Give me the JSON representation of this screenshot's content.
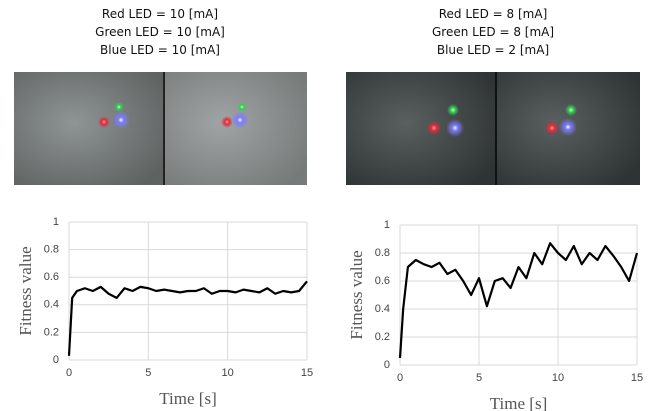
{
  "chart_data": [
    {
      "type": "line",
      "annotations": [
        "Red LED = 10 [mA]",
        "Green LED = 10 [mA]",
        "Blue LED = 10 [mA]"
      ],
      "xlabel": "Time [s]",
      "ylabel": "Fitness  value",
      "x": [
        0,
        0.2,
        0.5,
        1,
        1.5,
        2,
        2.5,
        3,
        3.5,
        4,
        4.5,
        5,
        5.5,
        6,
        6.5,
        7,
        7.5,
        8,
        8.5,
        9,
        9.5,
        10,
        10.5,
        11,
        11.5,
        12,
        12.5,
        13,
        13.5,
        14,
        14.5,
        15
      ],
      "values": [
        0.03,
        0.45,
        0.5,
        0.52,
        0.5,
        0.53,
        0.48,
        0.45,
        0.52,
        0.5,
        0.53,
        0.52,
        0.5,
        0.51,
        0.5,
        0.49,
        0.5,
        0.5,
        0.52,
        0.48,
        0.5,
        0.5,
        0.49,
        0.51,
        0.5,
        0.49,
        0.52,
        0.48,
        0.5,
        0.49,
        0.5,
        0.57
      ],
      "color": "#000000",
      "xlim": [
        0,
        15
      ],
      "xticks": [
        0,
        5,
        10,
        15
      ],
      "ylim": [
        0,
        1
      ],
      "yticks": [
        0,
        0.2,
        0.4,
        0.6,
        0.8,
        1
      ],
      "grid": true
    },
    {
      "type": "line",
      "annotations": [
        "Red LED = 8 [mA]",
        "Green LED = 8 [mA]",
        "Blue LED = 2 [mA]"
      ],
      "xlabel": "Time [s]",
      "ylabel": "Fitness value",
      "x": [
        0,
        0.2,
        0.5,
        1,
        1.5,
        2,
        2.5,
        3,
        3.5,
        4,
        4.5,
        5,
        5.5,
        6,
        6.5,
        7,
        7.5,
        8,
        8.5,
        9,
        9.5,
        10,
        10.5,
        11,
        11.5,
        12,
        12.5,
        13,
        13.5,
        14,
        14.5,
        15
      ],
      "values": [
        0.05,
        0.4,
        0.7,
        0.75,
        0.72,
        0.7,
        0.73,
        0.65,
        0.68,
        0.6,
        0.5,
        0.62,
        0.42,
        0.6,
        0.62,
        0.55,
        0.7,
        0.62,
        0.8,
        0.72,
        0.87,
        0.8,
        0.75,
        0.85,
        0.72,
        0.8,
        0.75,
        0.85,
        0.78,
        0.7,
        0.6,
        0.8
      ],
      "color": "#000000",
      "xlim": [
        0,
        15
      ],
      "xticks": [
        0,
        5,
        10,
        15
      ],
      "ylim": [
        0,
        1
      ],
      "yticks": [
        0,
        0.2,
        0.4,
        0.6,
        0.8,
        1
      ],
      "grid": true
    }
  ]
}
